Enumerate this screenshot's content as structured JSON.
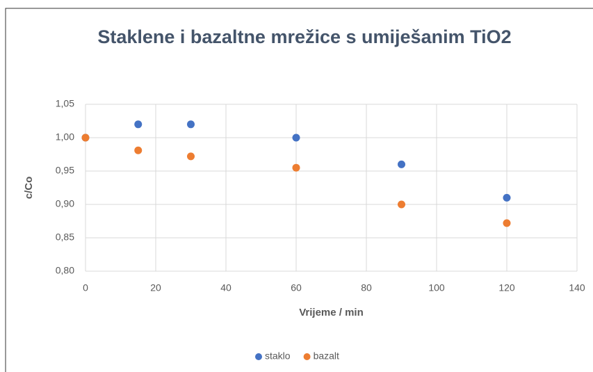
{
  "chart_data": {
    "type": "scatter",
    "title": "Staklene i bazaltne mrežice s umiješanim TiO2",
    "xlabel": "Vrijeme / min",
    "ylabel": "c/Co",
    "x": [
      0,
      15,
      30,
      60,
      90,
      120
    ],
    "series": [
      {
        "name": "staklo",
        "color": "#4472c4",
        "values": [
          1.0,
          1.02,
          1.02,
          1.0,
          0.96,
          0.91
        ]
      },
      {
        "name": "bazalt",
        "color": "#ed7d31",
        "values": [
          1.0,
          0.981,
          0.972,
          0.955,
          0.9,
          0.872
        ]
      }
    ],
    "xlim": [
      0,
      140
    ],
    "xticks": [
      0,
      20,
      40,
      60,
      80,
      100,
      120,
      140
    ],
    "ylim": [
      0.8,
      1.05
    ],
    "yticks": [
      {
        "value": 0.8,
        "label": "0,80"
      },
      {
        "value": 0.85,
        "label": "0,85"
      },
      {
        "value": 0.9,
        "label": "0,90"
      },
      {
        "value": 0.95,
        "label": "0,95"
      },
      {
        "value": 1.0,
        "label": "1,00"
      },
      {
        "value": 1.05,
        "label": "1,05"
      }
    ],
    "grid": true,
    "legend": "bottom"
  }
}
